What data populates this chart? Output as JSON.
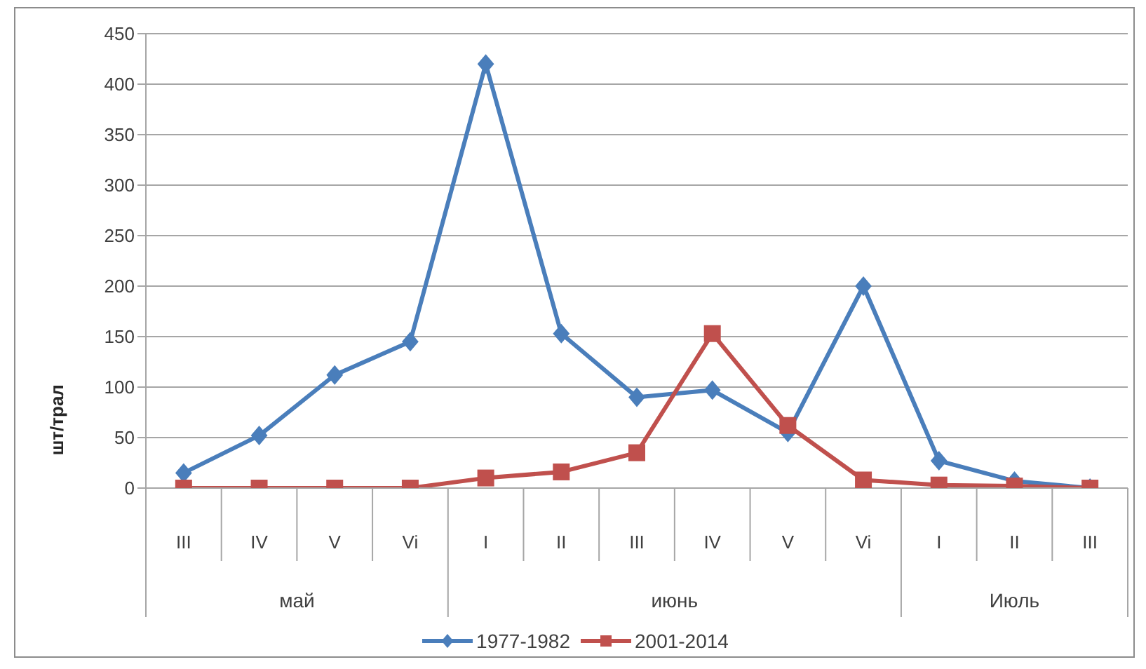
{
  "chart_data": {
    "type": "line",
    "ylabel": "шт/трал",
    "categories": [
      "III",
      "IV",
      "V",
      "Vi",
      "I",
      "II",
      "III",
      "IV",
      "V",
      "Vi",
      "I",
      "II",
      "III"
    ],
    "series": [
      {
        "name": "1977-1982",
        "color": "#4a7ebb",
        "marker": "diamond",
        "values": [
          15,
          52,
          112,
          145,
          420,
          153,
          90,
          97,
          55,
          200,
          27,
          7,
          0
        ]
      },
      {
        "name": "2001-2014",
        "color": "#c0504d",
        "marker": "square",
        "values": [
          0,
          0,
          0,
          0,
          10,
          16,
          35,
          153,
          62,
          8,
          3,
          2,
          0
        ]
      }
    ],
    "ylim": [
      0,
      450
    ],
    "yticks": [
      0,
      50,
      100,
      150,
      200,
      250,
      300,
      350,
      400,
      450
    ],
    "grid": "y",
    "legend": "bottom",
    "annotations": [
      "май",
      "июнь",
      "Июль"
    ]
  }
}
